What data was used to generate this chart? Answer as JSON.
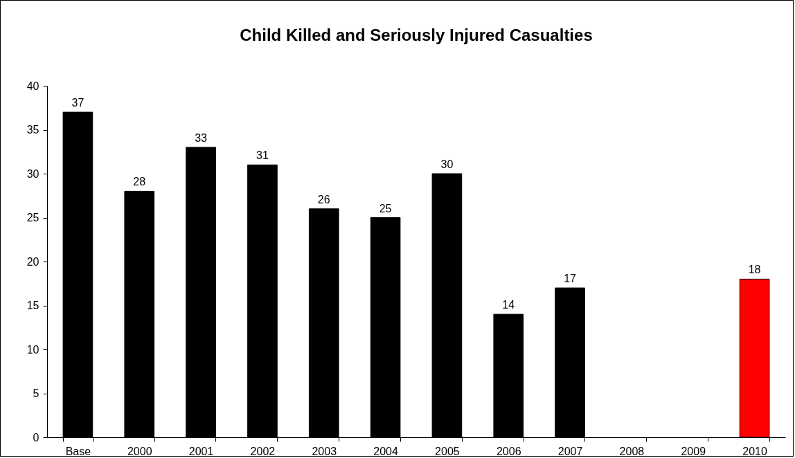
{
  "chart_data": {
    "type": "bar",
    "title": "Child Killed and Seriously Injured Casualties",
    "categories": [
      "Base",
      "2000",
      "2001",
      "2002",
      "2003",
      "2004",
      "2005",
      "2006",
      "2007",
      "2008",
      "2009",
      "2010"
    ],
    "values": [
      37,
      28,
      33,
      31,
      26,
      25,
      30,
      14,
      17,
      null,
      null,
      18
    ],
    "colors": [
      "#000000",
      "#000000",
      "#000000",
      "#000000",
      "#000000",
      "#000000",
      "#000000",
      "#000000",
      "#000000",
      null,
      null,
      "#ff0000"
    ],
    "ylim": [
      0,
      40
    ],
    "yticks": [
      0,
      5,
      10,
      15,
      20,
      25,
      30,
      35,
      40
    ],
    "grid": false,
    "data_labels": true
  }
}
